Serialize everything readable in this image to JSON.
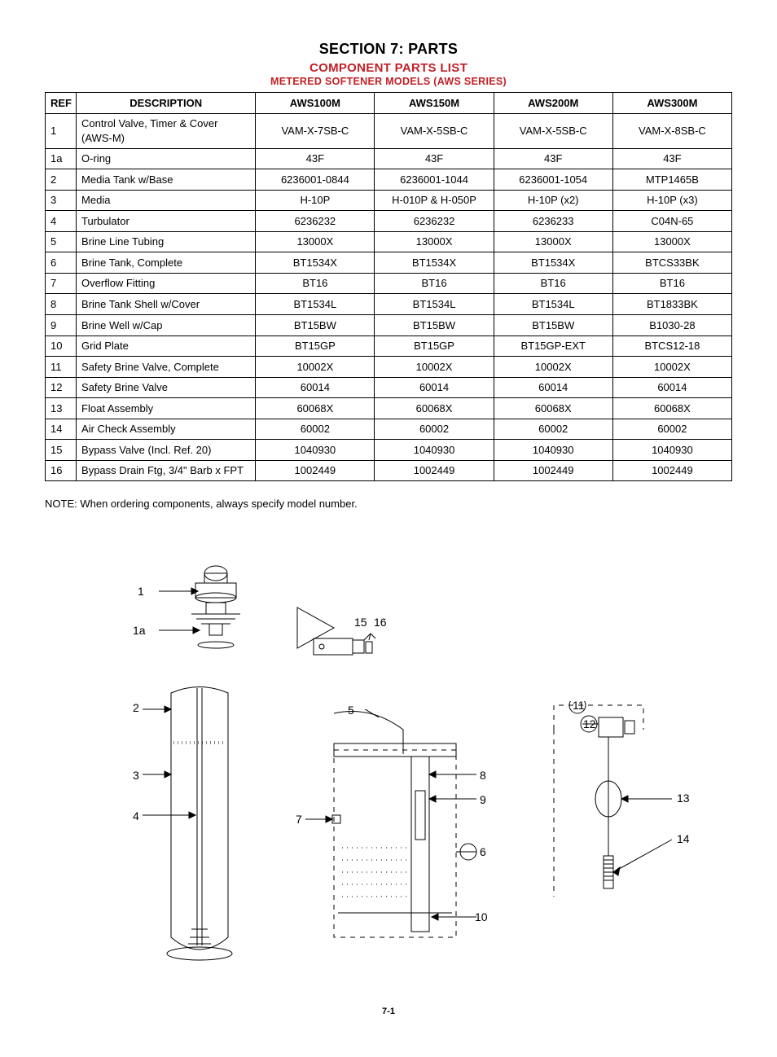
{
  "header": {
    "section_title": "SECTION 7: PARTS",
    "subtitle": "COMPONENT PARTS LIST",
    "subsub": "METERED SOFTENER MODELS (AWS SERIES)"
  },
  "table": {
    "columns": [
      "REF",
      "DESCRIPTION",
      "AWS100M",
      "AWS150M",
      "AWS200M",
      "AWS300M"
    ],
    "rows": [
      [
        "1",
        "Control Valve, Timer & Cover (AWS-M)",
        "VAM-X-7SB-C",
        "VAM-X-5SB-C",
        "VAM-X-5SB-C",
        "VAM-X-8SB-C"
      ],
      [
        "1a",
        "O-ring",
        "43F",
        "43F",
        "43F",
        "43F"
      ],
      [
        "2",
        "Media Tank w/Base",
        "6236001-0844",
        "6236001-1044",
        "6236001-1054",
        "MTP1465B"
      ],
      [
        "3",
        "Media",
        "H-10P",
        "H-010P & H-050P",
        "H-10P (x2)",
        "H-10P (x3)"
      ],
      [
        "4",
        "Turbulator",
        "6236232",
        "6236232",
        "6236233",
        "C04N-65"
      ],
      [
        "5",
        "Brine Line Tubing",
        "13000X",
        "13000X",
        "13000X",
        "13000X"
      ],
      [
        "6",
        "Brine Tank, Complete",
        "BT1534X",
        "BT1534X",
        "BT1534X",
        "BTCS33BK"
      ],
      [
        "7",
        "Overflow Fitting",
        "BT16",
        "BT16",
        "BT16",
        "BT16"
      ],
      [
        "8",
        "Brine Tank Shell w/Cover",
        "BT1534L",
        "BT1534L",
        "BT1534L",
        "BT1833BK"
      ],
      [
        "9",
        "Brine Well w/Cap",
        "BT15BW",
        "BT15BW",
        "BT15BW",
        "B1030-28"
      ],
      [
        "10",
        "Grid Plate",
        "BT15GP",
        "BT15GP",
        "BT15GP-EXT",
        "BTCS12-18"
      ],
      [
        "11",
        "Safety Brine Valve, Complete",
        "10002X",
        "10002X",
        "10002X",
        "10002X"
      ],
      [
        "12",
        "Safety Brine Valve",
        "60014",
        "60014",
        "60014",
        "60014"
      ],
      [
        "13",
        "Float Assembly",
        "60068X",
        "60068X",
        "60068X",
        "60068X"
      ],
      [
        "14",
        "Air Check Assembly",
        "60002",
        "60002",
        "60002",
        "60002"
      ],
      [
        "15",
        "Bypass Valve (Incl. Ref. 20)",
        "1040930",
        "1040930",
        "1040930",
        "1040930"
      ],
      [
        "16",
        "Bypass Drain Ftg, 3/4\" Barb x FPT",
        "1002449",
        "1002449",
        "1002449",
        "1002449"
      ]
    ]
  },
  "note": "NOTE: When ordering components, always specify model number.",
  "footer": "7-1",
  "diagrams": {
    "callouts": {
      "c1": "1",
      "c1a": "1a",
      "c2": "2",
      "c3": "3",
      "c4": "4",
      "c5": "5",
      "c6": "6",
      "c7": "7",
      "c8": "8",
      "c9": "9",
      "c10": "10",
      "c11": "11",
      "c12": "12",
      "c13": "13",
      "c14": "14",
      "c15": "15",
      "c16": "16"
    }
  },
  "style": {
    "accent_color": "#c12026",
    "text_color": "#000000",
    "bg_color": "#ffffff",
    "border_color": "#000000"
  }
}
